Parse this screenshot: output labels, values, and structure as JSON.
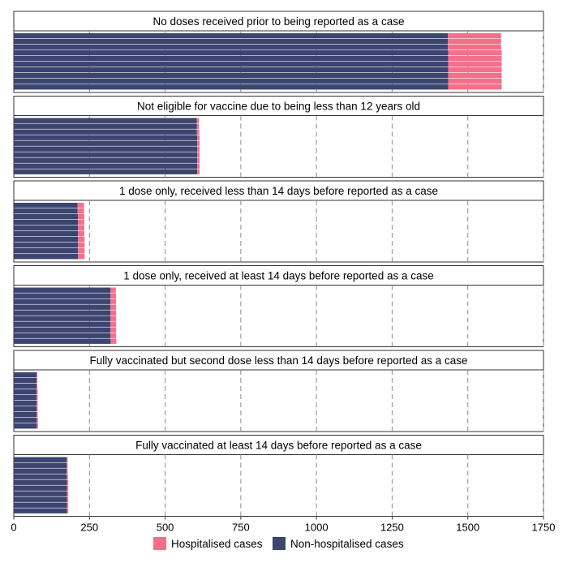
{
  "chart_data": {
    "type": "waffle",
    "unit_per_cell": 1,
    "rows_per_panel": 10,
    "xlim": [
      0,
      1750
    ],
    "x_ticks": [
      0,
      250,
      500,
      750,
      1000,
      1250,
      1500,
      1750
    ],
    "x_tick_labels": [
      "0",
      "250",
      "500",
      "750",
      "1000",
      "1250",
      "1500",
      "1750"
    ],
    "grid_vertical_dashed": true,
    "legend_position": "bottom",
    "series": [
      {
        "name": "Hospitalised cases",
        "color": "#f4708a"
      },
      {
        "name": "Non-hospitalised cases",
        "color": "#3c4470"
      }
    ],
    "panels": [
      {
        "label": "No doses received prior to being reported as a case",
        "hospitalised": 1767,
        "non_hospitalised": 14347
      },
      {
        "label": "Not eligible for vaccine due to being less than 12 years old",
        "hospitalised": 78,
        "non_hospitalised": 6057
      },
      {
        "label": "1 dose only, received less than 14 days before reported as a case",
        "hospitalised": 214,
        "non_hospitalised": 2118
      },
      {
        "label": "1 dose only, received at least 14 days before reported as a case",
        "hospitalised": 189,
        "non_hospitalised": 3191
      },
      {
        "label": "Fully vaccinated but second dose less than 14 days before reported as a case",
        "hospitalised": 37,
        "non_hospitalised": 752
      },
      {
        "label": "Fully vaccinated at least 14 days before reported as a case",
        "hospitalised": 37,
        "non_hospitalised": 1756
      }
    ]
  }
}
